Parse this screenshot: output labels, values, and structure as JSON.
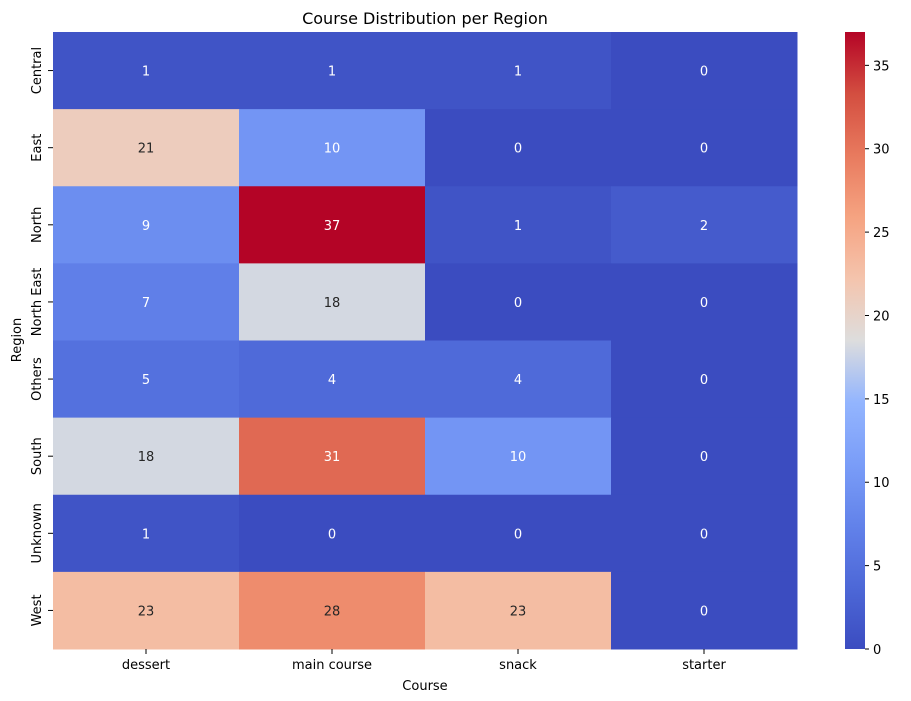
{
  "chart_data": {
    "type": "heatmap",
    "title": "Course Distribution per Region",
    "xlabel": "Course",
    "ylabel": "Region",
    "x_categories": [
      "dessert",
      "main course",
      "snack",
      "starter"
    ],
    "y_categories": [
      "Central",
      "East",
      "North",
      "North East",
      "Others",
      "South",
      "Unknown",
      "West"
    ],
    "values": [
      [
        1,
        1,
        1,
        0
      ],
      [
        21,
        10,
        0,
        0
      ],
      [
        9,
        37,
        1,
        2
      ],
      [
        7,
        18,
        0,
        0
      ],
      [
        5,
        4,
        4,
        0
      ],
      [
        18,
        31,
        10,
        0
      ],
      [
        1,
        0,
        0,
        0
      ],
      [
        23,
        28,
        23,
        0
      ]
    ],
    "colormap": "coolwarm",
    "colorbar": {
      "min": 0,
      "max": 37,
      "ticks": [
        0,
        5,
        10,
        15,
        20,
        25,
        30,
        35
      ],
      "position": "right"
    },
    "annotations": true,
    "grid": false
  }
}
